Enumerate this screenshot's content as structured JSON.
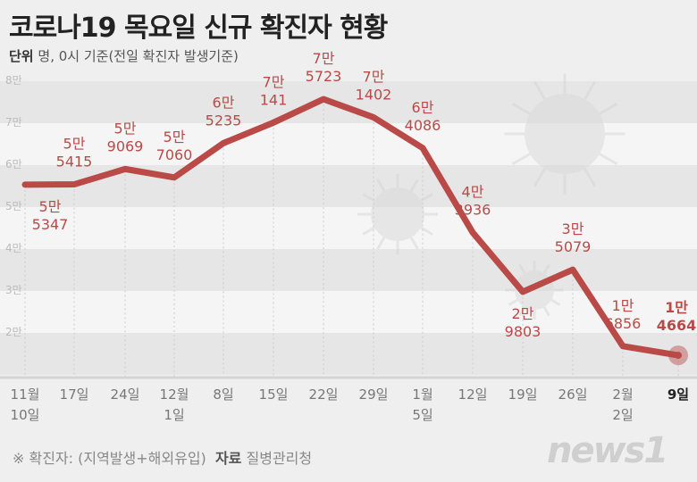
{
  "title": "코로나19 목요일 신규 확진자 현황",
  "unit_label": "단위",
  "unit_text": "명, 0시 기준(전일 확진자 발생기준)",
  "footnote": "※ 확진자: (지역발생+해외유입)",
  "source_label": "자료",
  "source": "질병관리청",
  "logo": "news1",
  "chart_data": {
    "type": "line",
    "title": "코로나19 목요일 신규 확진자 현황",
    "ylabel": "명",
    "ylim": [
      10000,
      80000
    ],
    "yticks": [
      "2만",
      "3만",
      "4만",
      "5만",
      "6만",
      "7만",
      "8만"
    ],
    "categories": [
      [
        "11월",
        "10일"
      ],
      [
        "17일"
      ],
      [
        "24일"
      ],
      [
        "12월",
        "1일"
      ],
      [
        "8일"
      ],
      [
        "15일"
      ],
      [
        "22일"
      ],
      [
        "29일"
      ],
      [
        "1월",
        "5일"
      ],
      [
        "12일"
      ],
      [
        "19일"
      ],
      [
        "26일"
      ],
      [
        "2월",
        "2일"
      ],
      [
        "9일"
      ]
    ],
    "values": [
      55347,
      55415,
      59069,
      57060,
      65235,
      70141,
      75723,
      71402,
      64086,
      43936,
      29803,
      35079,
      16856,
      14664
    ],
    "labels": [
      [
        "5만",
        "5347"
      ],
      [
        "5만",
        "5415"
      ],
      [
        "5만",
        "9069"
      ],
      [
        "5만",
        "7060"
      ],
      [
        "6만",
        "5235"
      ],
      [
        "7만",
        "141"
      ],
      [
        "7만",
        "5723"
      ],
      [
        "7만",
        "1402"
      ],
      [
        "6만",
        "4086"
      ],
      [
        "4만",
        "3936"
      ],
      [
        "2만",
        "9803"
      ],
      [
        "3만",
        "5079"
      ],
      [
        "1만",
        "6856"
      ],
      [
        "1만",
        "4664"
      ]
    ],
    "line_color": "#b94a48"
  }
}
